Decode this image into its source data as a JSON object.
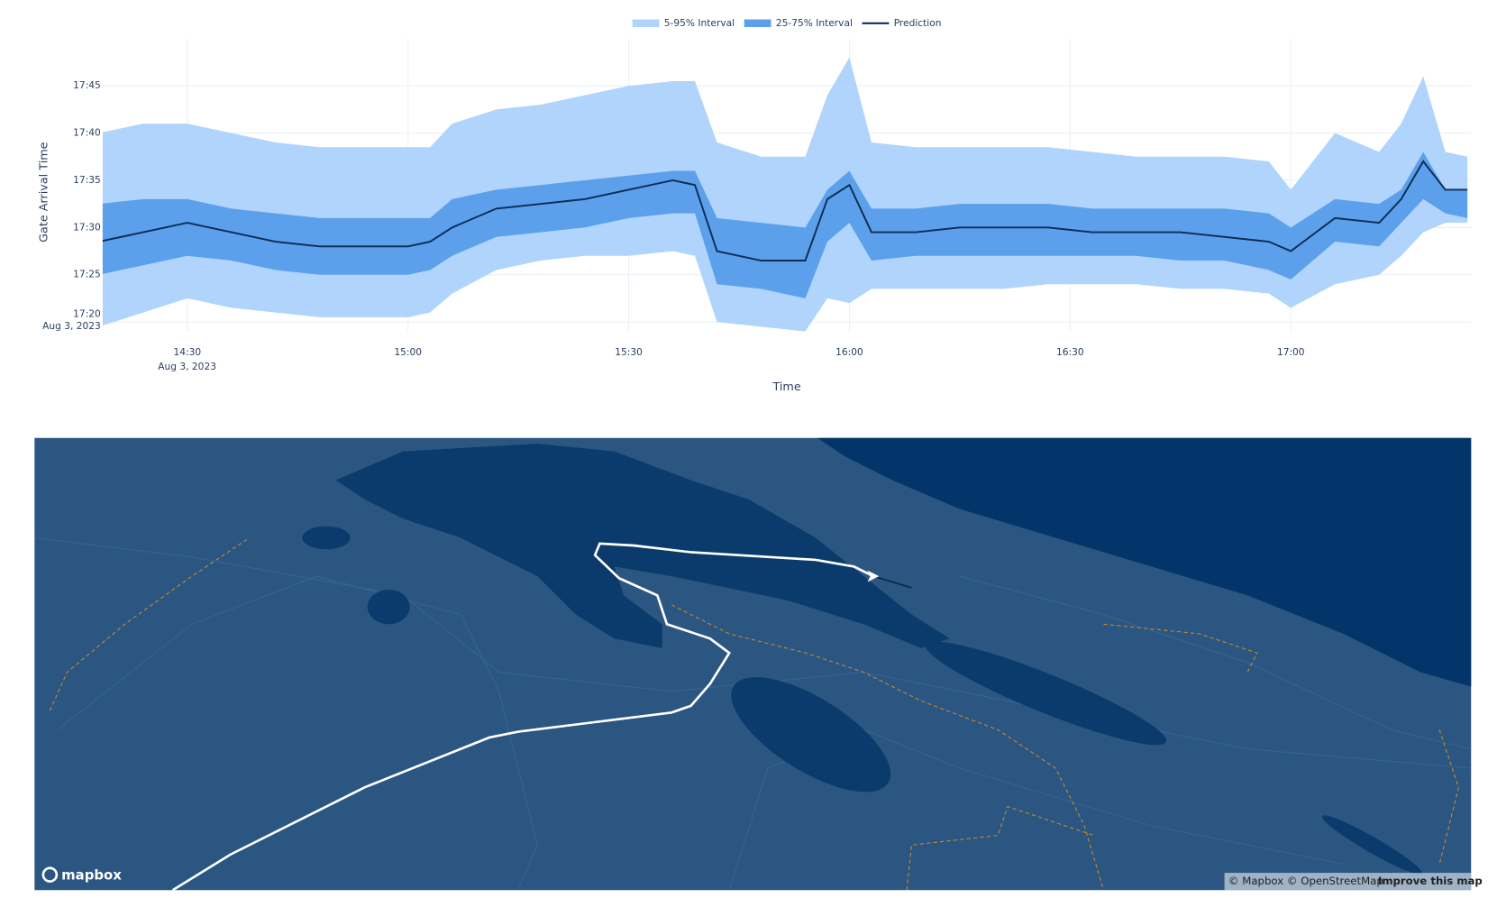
{
  "chart_data": {
    "type": "interval-band",
    "y_title": "Gate Arrival Time",
    "x_title": "Time",
    "x_date": "Aug 3, 2023",
    "y_date": "Aug 3, 2023",
    "x": [
      "14:18",
      "14:24",
      "14:30",
      "14:36",
      "14:42",
      "14:48",
      "14:54",
      "15:00",
      "15:03",
      "15:06",
      "15:12",
      "15:18",
      "15:24",
      "15:30",
      "15:36",
      "15:39",
      "15:42",
      "15:48",
      "15:54",
      "15:57",
      "16:00",
      "16:03",
      "16:09",
      "16:15",
      "16:21",
      "16:27",
      "16:33",
      "16:39",
      "16:45",
      "16:51",
      "16:57",
      "17:00",
      "17:06",
      "17:12",
      "17:15",
      "17:18",
      "17:21",
      "17:24"
    ],
    "xlim": [
      "14:18:30",
      "17:24:30"
    ],
    "xticks": [
      "14:30",
      "15:00",
      "15:30",
      "16:00",
      "16:30",
      "17:00"
    ],
    "ylim": [
      "17:19",
      "17:50"
    ],
    "yticks": [
      "17:20",
      "17:25",
      "17:30",
      "17:35",
      "17:40",
      "17:45"
    ],
    "grid": true,
    "series": [
      {
        "name": "5-95% Interval",
        "color": "#b0d4fb",
        "upper": [
          "17:40:00",
          "17:41:00",
          "17:41:00",
          "17:40:00",
          "17:39:00",
          "17:38:30",
          "17:38:30",
          "17:38:30",
          "17:38:30",
          "17:41:00",
          "17:42:30",
          "17:43:00",
          "17:44:00",
          "17:45:00",
          "17:45:30",
          "17:45:30",
          "17:39:00",
          "17:37:30",
          "17:37:30",
          "17:44:00",
          "17:48:00",
          "17:39:00",
          "17:38:30",
          "17:38:30",
          "17:38:30",
          "17:38:30",
          "17:38:00",
          "17:37:30",
          "17:37:30",
          "17:37:30",
          "17:37:00",
          "17:34:00",
          "17:40:00",
          "17:38:00",
          "17:41:00",
          "17:46:00",
          "17:38:00",
          "17:37:30"
        ],
        "lower": [
          "17:19:30",
          "17:21:00",
          "17:22:30",
          "17:21:30",
          "17:21:00",
          "17:20:30",
          "17:20:30",
          "17:20:30",
          "17:21:00",
          "17:23:00",
          "17:25:30",
          "17:26:30",
          "17:27:00",
          "17:27:00",
          "17:27:30",
          "17:27:00",
          "17:20:00",
          "17:19:30",
          "17:19:00",
          "17:22:30",
          "17:22:00",
          "17:23:30",
          "17:23:30",
          "17:23:30",
          "17:23:30",
          "17:24:00",
          "17:24:00",
          "17:24:00",
          "17:23:30",
          "17:23:30",
          "17:23:00",
          "17:21:30",
          "17:24:00",
          "17:25:00",
          "17:27:00",
          "17:29:30",
          "17:30:30",
          "17:30:30"
        ]
      },
      {
        "name": "25-75% Interval",
        "color": "#5ca0eb",
        "upper": [
          "17:32:30",
          "17:33:00",
          "17:33:00",
          "17:32:00",
          "17:31:30",
          "17:31:00",
          "17:31:00",
          "17:31:00",
          "17:31:00",
          "17:33:00",
          "17:34:00",
          "17:34:30",
          "17:35:00",
          "17:35:30",
          "17:36:00",
          "17:36:00",
          "17:31:00",
          "17:30:30",
          "17:30:00",
          "17:34:00",
          "17:36:00",
          "17:32:00",
          "17:32:00",
          "17:32:30",
          "17:32:30",
          "17:32:30",
          "17:32:00",
          "17:32:00",
          "17:32:00",
          "17:32:00",
          "17:31:30",
          "17:30:00",
          "17:33:00",
          "17:32:30",
          "17:34:00",
          "17:38:00",
          "17:34:00",
          "17:34:00"
        ],
        "lower": [
          "17:25:00",
          "17:26:00",
          "17:27:00",
          "17:26:30",
          "17:25:30",
          "17:25:00",
          "17:25:00",
          "17:25:00",
          "17:25:30",
          "17:27:00",
          "17:29:00",
          "17:29:30",
          "17:30:00",
          "17:31:00",
          "17:31:30",
          "17:31:30",
          "17:24:00",
          "17:23:30",
          "17:22:30",
          "17:28:30",
          "17:30:30",
          "17:26:30",
          "17:27:00",
          "17:27:00",
          "17:27:00",
          "17:27:00",
          "17:27:00",
          "17:27:00",
          "17:26:30",
          "17:26:30",
          "17:25:30",
          "17:24:30",
          "17:28:30",
          "17:28:00",
          "17:30:30",
          "17:33:00",
          "17:31:30",
          "17:31:00"
        ]
      },
      {
        "name": "Prediction",
        "color": "#0d2c54",
        "values": [
          "17:28:30",
          "17:29:30",
          "17:30:30",
          "17:29:30",
          "17:28:30",
          "17:28:00",
          "17:28:00",
          "17:28:00",
          "17:28:30",
          "17:30:00",
          "17:32:00",
          "17:32:30",
          "17:33:00",
          "17:34:00",
          "17:35:00",
          "17:34:30",
          "17:27:30",
          "17:26:30",
          "17:26:30",
          "17:33:00",
          "17:34:30",
          "17:29:30",
          "17:29:30",
          "17:30:00",
          "17:30:00",
          "17:30:00",
          "17:29:30",
          "17:29:30",
          "17:29:30",
          "17:29:00",
          "17:28:30",
          "17:27:30",
          "17:31:00",
          "17:30:30",
          "17:33:00",
          "17:37:00",
          "17:34:00",
          "17:34:00"
        ]
      }
    ]
  },
  "map": {
    "logo": "mapbox",
    "attribution": "© Mapbox © OpenStreetMap",
    "improve": "Improve this map"
  }
}
